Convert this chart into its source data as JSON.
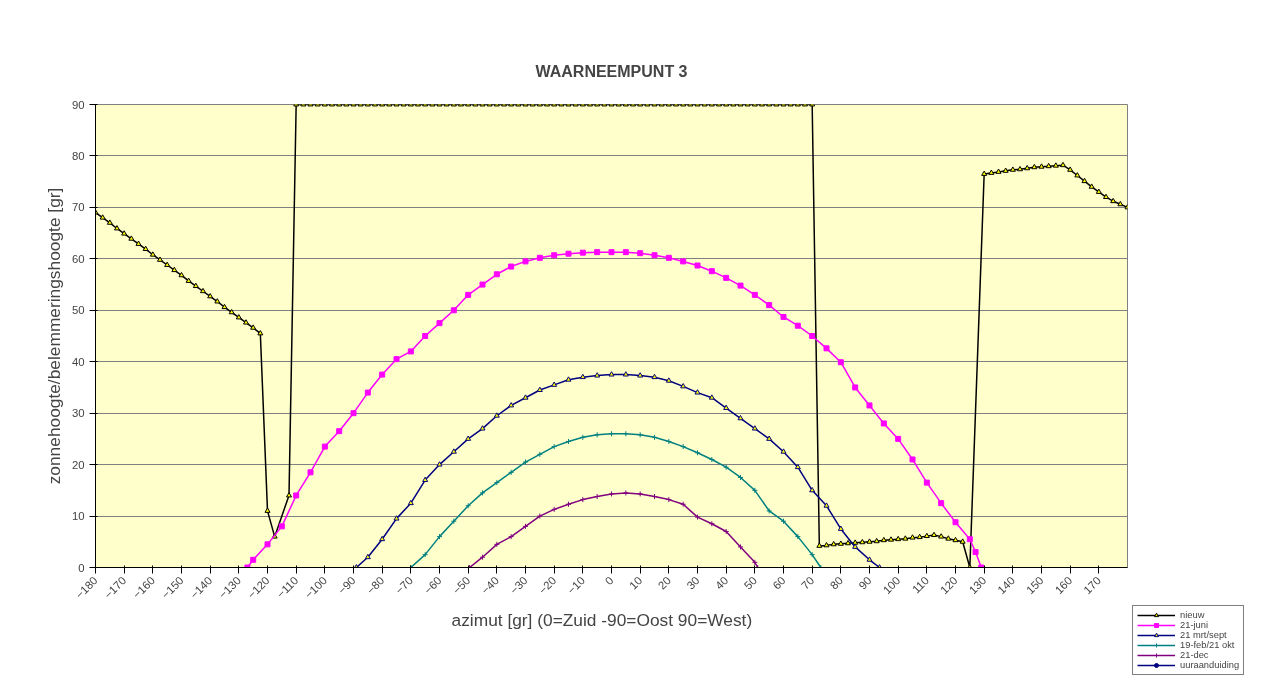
{
  "chart_data": {
    "type": "line",
    "title": "WAARNEEMPUNT 3",
    "xlabel": "azimut [gr]  (0=Zuid  -90=Oost   90=West)",
    "ylabel": "zonnehoogte/belemmeringshoogte [gr]",
    "xlim": [
      -180,
      180
    ],
    "xticks": [
      -180,
      -170,
      -160,
      -150,
      -140,
      -130,
      -120,
      -110,
      -100,
      -90,
      -80,
      -70,
      -60,
      -50,
      -40,
      -30,
      -20,
      -10,
      0,
      10,
      20,
      30,
      40,
      50,
      60,
      70,
      80,
      90,
      100,
      110,
      120,
      130,
      140,
      150,
      160,
      170
    ],
    "ylim": [
      0,
      90
    ],
    "yticks": [
      0,
      10,
      20,
      30,
      40,
      50,
      60,
      70,
      80,
      90
    ],
    "grid": "y",
    "legend": "bottom right",
    "series": [
      {
        "name": "nieuw",
        "color": "#000000",
        "marker": "triangle",
        "x": [
          -180,
          -177.5,
          -175,
          -172.5,
          -170,
          -167.5,
          -165,
          -162.5,
          -160,
          -157.5,
          -155,
          -152.5,
          -150,
          -147.5,
          -145,
          -142.5,
          -140,
          -137.5,
          -135,
          -132.5,
          -130,
          -127.5,
          -125,
          -122.5,
          -120,
          -117.5,
          -112.5,
          -110,
          -107.5,
          -105,
          -102.5,
          -100,
          -97.5,
          -95,
          -92.5,
          -90,
          -87.5,
          -85,
          -82.5,
          -80,
          -77.5,
          -75,
          -72.5,
          -70,
          -67.5,
          -65,
          -62.5,
          -60,
          -57.5,
          -55,
          -52.5,
          -50,
          -47.5,
          -45,
          -42.5,
          -40,
          -37.5,
          -35,
          -32.5,
          -30,
          -27.5,
          -25,
          -22.5,
          -20,
          -17.5,
          -15,
          -12.5,
          -10,
          -7.5,
          -5,
          -2.5,
          0,
          2.5,
          5,
          7.5,
          10,
          12.5,
          15,
          17.5,
          20,
          22.5,
          25,
          27.5,
          30,
          32.5,
          35,
          37.5,
          40,
          42.5,
          45,
          47.5,
          50,
          52.5,
          55,
          57.5,
          60,
          62.5,
          65,
          67.5,
          70,
          72.5,
          75,
          77.5,
          80,
          82.5,
          85,
          87.5,
          90,
          92.5,
          95,
          97.5,
          100,
          102.5,
          105,
          107.5,
          110,
          112.5,
          115,
          117.5,
          120,
          122.5,
          125,
          130,
          132.5,
          135,
          137.5,
          140,
          142.5,
          145,
          147.5,
          150,
          152.5,
          155,
          157.5,
          160,
          162.5,
          165,
          167.5,
          170,
          172.5,
          175,
          177.5,
          180
        ],
        "values": [
          69,
          68,
          67,
          65.9,
          64.9,
          63.9,
          62.9,
          61.9,
          60.8,
          59.8,
          58.8,
          57.8,
          56.8,
          55.7,
          54.7,
          53.7,
          52.7,
          51.7,
          50.6,
          49.6,
          48.6,
          47.6,
          46.6,
          45.5,
          11,
          6,
          14,
          90,
          90,
          90,
          90,
          90,
          90,
          90,
          90,
          90,
          90,
          90,
          90,
          90,
          90,
          90,
          90,
          90,
          90,
          90,
          90,
          90,
          90,
          90,
          90,
          90,
          90,
          90,
          90,
          90,
          90,
          90,
          90,
          90,
          90,
          90,
          90,
          90,
          90,
          90,
          90,
          90,
          90,
          90,
          90,
          90,
          90,
          90,
          90,
          90,
          90,
          90,
          90,
          90,
          90,
          90,
          90,
          90,
          90,
          90,
          90,
          90,
          90,
          90,
          90,
          90,
          90,
          90,
          90,
          90,
          90,
          90,
          90,
          90,
          4.2,
          4.3,
          4.5,
          4.6,
          4.7,
          4.8,
          4.9,
          5,
          5.1,
          5.3,
          5.4,
          5.5,
          5.6,
          5.8,
          5.9,
          6.1,
          6.3,
          6,
          5.6,
          5.3,
          5,
          0,
          76.5,
          76.7,
          76.9,
          77.1,
          77.3,
          77.4,
          77.6,
          77.8,
          77.9,
          78,
          78.1,
          78.2,
          77.3,
          76.2,
          75.1,
          74,
          73,
          72,
          71.2,
          70.6,
          70
        ]
      },
      {
        "name": "21-juni",
        "color": "#ff00ff",
        "marker": "square",
        "x": [
          -127,
          -125,
          -120,
          -115,
          -110,
          -105,
          -100,
          -95,
          -90,
          -85,
          -80,
          -75,
          -70,
          -65,
          -60,
          -55,
          -50,
          -45,
          -40,
          -35,
          -30,
          -25,
          -20,
          -15,
          -10,
          -5,
          0,
          5,
          10,
          15,
          20,
          25,
          30,
          35,
          40,
          45,
          50,
          55,
          60,
          65,
          70,
          75,
          80,
          85,
          90,
          95,
          100,
          105,
          110,
          115,
          120,
          125,
          127,
          129
        ],
        "values": [
          0,
          1.5,
          4.5,
          8,
          14,
          18.5,
          23.5,
          26.5,
          30,
          34,
          37.5,
          40.5,
          42,
          45,
          47.5,
          50,
          53,
          55,
          57,
          58.5,
          59.5,
          60.2,
          60.7,
          61,
          61.2,
          61.3,
          61.3,
          61.3,
          61.1,
          60.7,
          60.2,
          59.5,
          58.7,
          57.6,
          56.3,
          54.8,
          53,
          51,
          48.7,
          47,
          45,
          42.6,
          39.9,
          35,
          31.5,
          28,
          25,
          21,
          16.5,
          12.5,
          8.8,
          5.5,
          3,
          0
        ]
      },
      {
        "name": "21 mrt/sept",
        "color": "#000080",
        "marker": "triangle",
        "x": [
          -89,
          -85,
          -80,
          -75,
          -70,
          -65,
          -60,
          -55,
          -50,
          -45,
          -40,
          -35,
          -30,
          -25,
          -20,
          -15,
          -10,
          -5,
          0,
          5,
          10,
          15,
          20,
          25,
          30,
          35,
          40,
          45,
          50,
          55,
          60,
          65,
          70,
          75,
          80,
          85,
          90,
          93.5
        ],
        "values": [
          0,
          2,
          5.5,
          9.5,
          12.5,
          17,
          20,
          22.5,
          25,
          27,
          29.5,
          31.5,
          33,
          34.5,
          35.5,
          36.5,
          37,
          37.3,
          37.5,
          37.5,
          37.3,
          37,
          36.3,
          35.2,
          34,
          33,
          31,
          29,
          27,
          25,
          22.5,
          19.5,
          15,
          12,
          7.5,
          4,
          1.5,
          0
        ]
      },
      {
        "name": "19-feb/21 okt",
        "color": "#008080",
        "marker": "cross",
        "x": [
          -70,
          -65,
          -60,
          -55,
          -50,
          -45,
          -40,
          -35,
          -30,
          -25,
          -20,
          -15,
          -10,
          -5,
          0,
          5,
          10,
          15,
          20,
          25,
          30,
          35,
          40,
          45,
          50,
          55,
          60,
          65,
          70,
          73
        ],
        "values": [
          0,
          2.5,
          6,
          9,
          12,
          14.5,
          16.5,
          18.5,
          20.5,
          22,
          23.5,
          24.5,
          25.3,
          25.8,
          26,
          26,
          25.8,
          25.3,
          24.5,
          23.5,
          22.3,
          21,
          19.5,
          17.5,
          15,
          11,
          9,
          6,
          2.5,
          0
        ]
      },
      {
        "name": "21-dec",
        "color": "#800080",
        "marker": "cross",
        "x": [
          -49.5,
          -45,
          -40,
          -35,
          -30,
          -25,
          -20,
          -15,
          -10,
          -5,
          0,
          5,
          10,
          15,
          20,
          25,
          30,
          35,
          40,
          45,
          50,
          51
        ],
        "values": [
          0,
          2,
          4.5,
          6,
          8,
          10,
          11.3,
          12.3,
          13.2,
          13.8,
          14.3,
          14.5,
          14.3,
          13.8,
          13.2,
          12.3,
          9.8,
          8.5,
          7,
          4,
          1,
          0
        ]
      },
      {
        "name": "uuraanduiding",
        "color": "#000080",
        "marker": "circle"
      }
    ]
  }
}
